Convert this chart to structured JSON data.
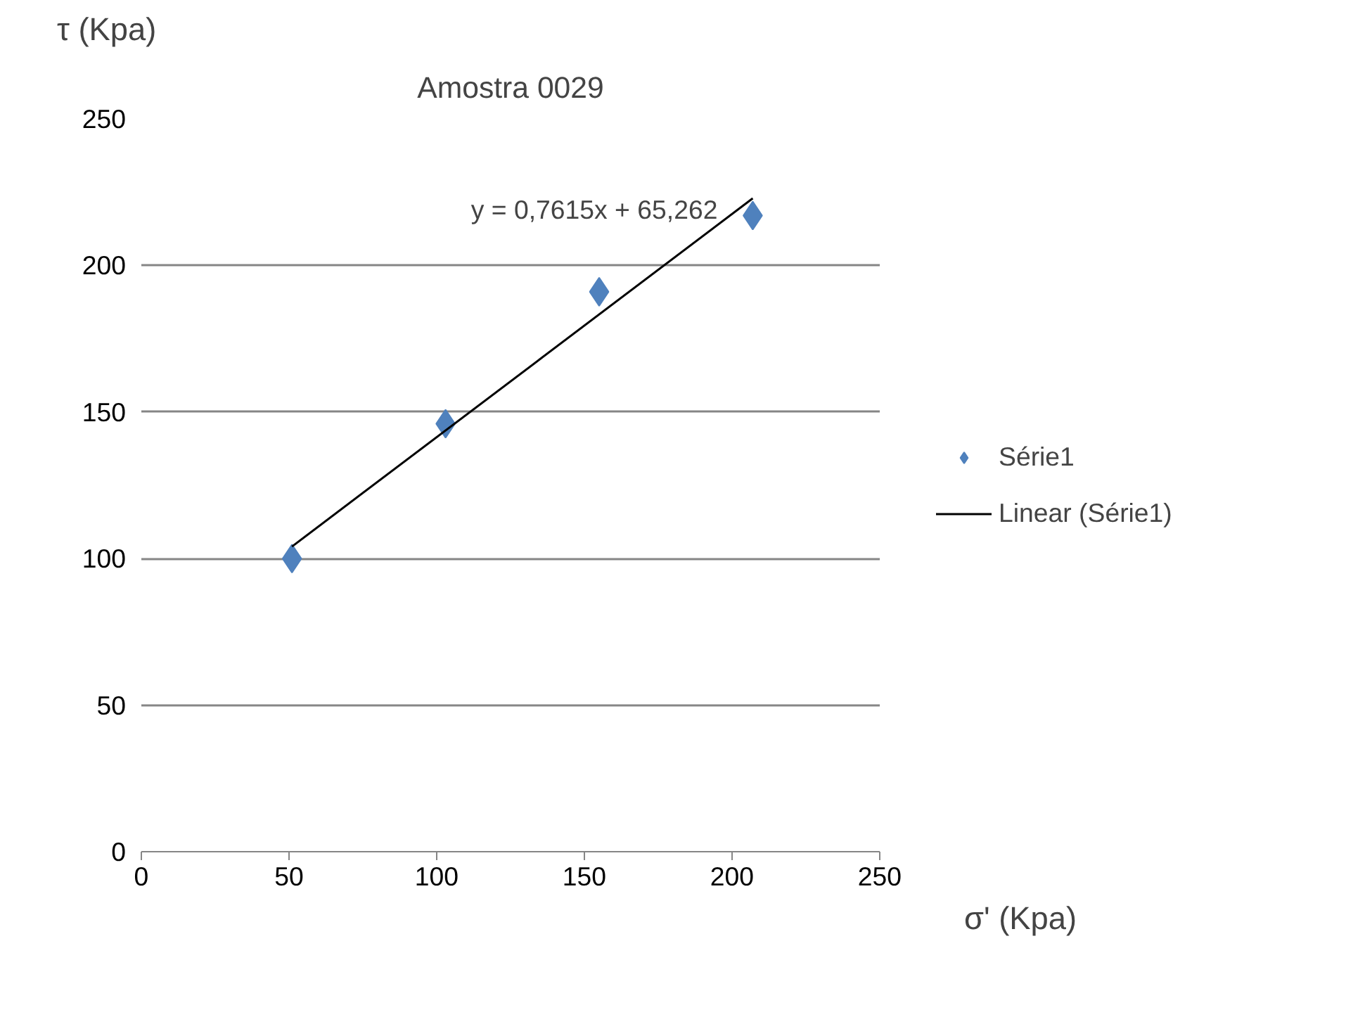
{
  "chart_data": {
    "type": "scatter",
    "title": "Amostra 0029",
    "xlabel": "σ' (Kpa)",
    "ylabel": "τ (Kpa)",
    "x": [
      51,
      103,
      155,
      207
    ],
    "series": [
      {
        "name": "Série1",
        "color": "#4f81bd",
        "marker": "diamond",
        "values": [
          100,
          146,
          191,
          217
        ]
      },
      {
        "name": "Linear (Série1)",
        "type": "line",
        "color": "#000000",
        "line_style": "solid",
        "x": [
          51,
          207
        ],
        "values": [
          104.1,
          222.9
        ]
      }
    ],
    "annotations": [
      "y = 0,7615x + 65,262"
    ],
    "xlim": [
      0,
      250
    ],
    "xticks": [
      0,
      50,
      100,
      150,
      200,
      250
    ],
    "ylim": [
      0,
      250
    ],
    "yticks": [
      0,
      50,
      100,
      150,
      200,
      250
    ],
    "grid": "y",
    "legend": "right"
  }
}
